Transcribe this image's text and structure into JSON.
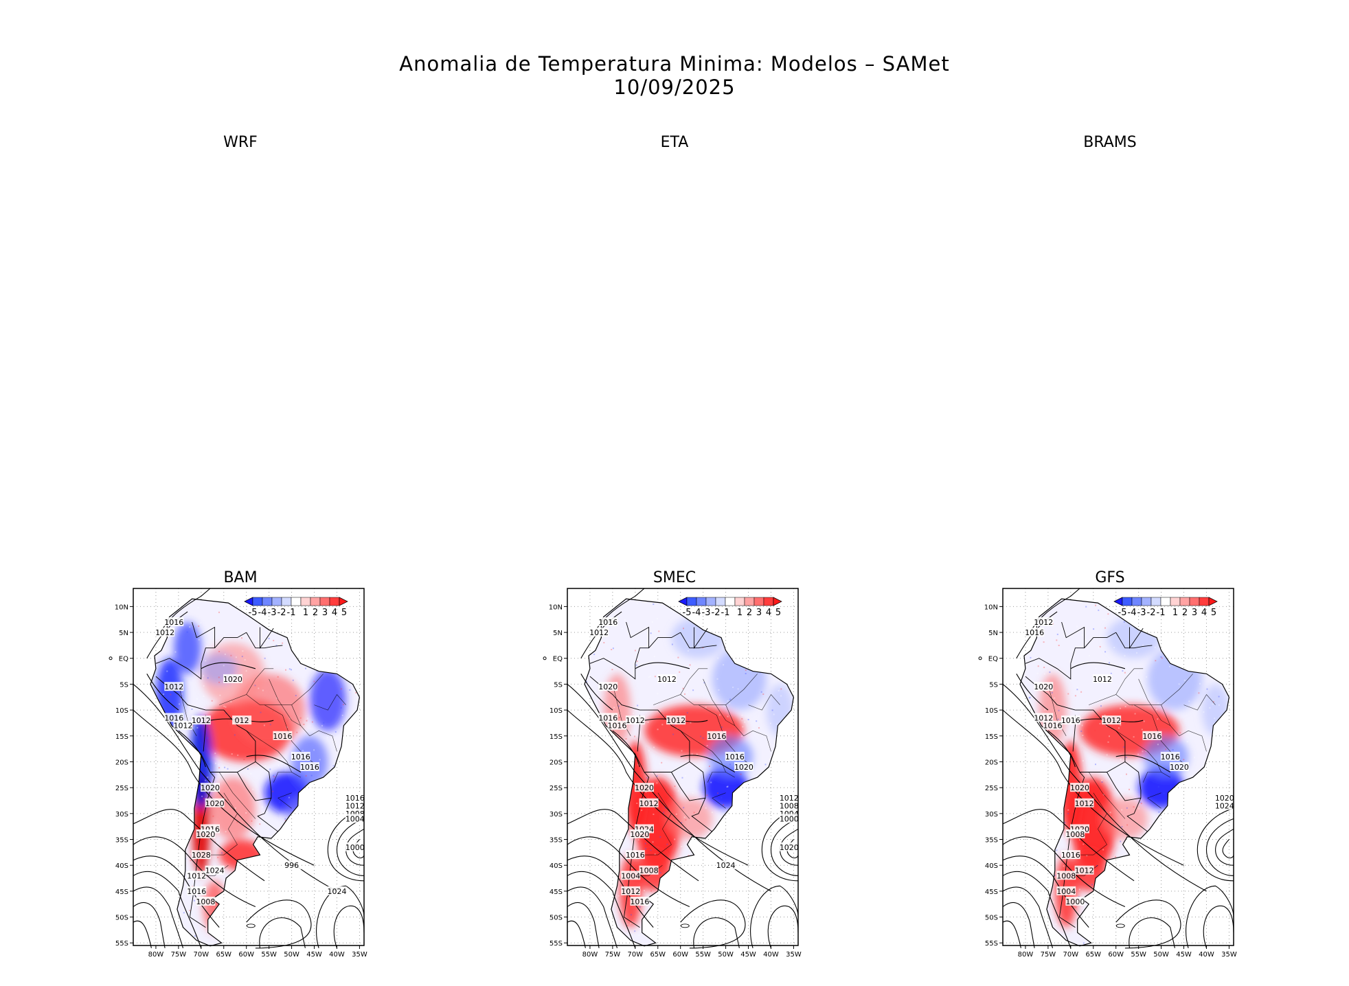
{
  "figure": {
    "title_line1": "Anomalia de Temperatura Minima: Modelos – SAMet",
    "title_line2": "10/09/2025"
  },
  "empty_panels": [
    {
      "name": "WRF"
    },
    {
      "name": "ETA"
    },
    {
      "name": "BRAMS"
    }
  ],
  "map_panels": [
    {
      "name": "BAM",
      "isobar_labels": [
        "1016",
        "1012",
        "1012",
        "1012",
        "012",
        "1020",
        "1016",
        "1012",
        "1016",
        "1016",
        "1016",
        "1020",
        "1020",
        "1016",
        "1020",
        "1028",
        "1024",
        "1012",
        "1016",
        "1008",
        "1016",
        "1012",
        "1008",
        "1004",
        "1000",
        "996",
        "1024"
      ],
      "anomaly_pattern": "warm-center-cold-east"
    },
    {
      "name": "SMEC",
      "isobar_labels": [
        "1016",
        "1012",
        "1020",
        "1012",
        "1012",
        "1012",
        "1016",
        "1016",
        "1016",
        "1016",
        "1020",
        "1020",
        "1012",
        "1024",
        "1020",
        "1016",
        "1008",
        "1004",
        "1012",
        "1016",
        "1012",
        "1008",
        "1004",
        "1000",
        "1020",
        "1024"
      ],
      "anomaly_pattern": "warm-south-cold-southeast"
    },
    {
      "name": "GFS",
      "isobar_labels": [
        "1012",
        "1016",
        "1020",
        "1016",
        "1012",
        "1012",
        "1012",
        "1016",
        "1016",
        "1016",
        "1020",
        "1020",
        "1012",
        "1020",
        "1008",
        "1016",
        "1012",
        "1008",
        "1004",
        "1000",
        "1020",
        "1024"
      ],
      "anomaly_pattern": "warm-south-cold-southeast"
    }
  ],
  "axes": {
    "lat_ticks": [
      "10N",
      "5N",
      "EQ",
      "5S",
      "10S",
      "15S",
      "20S",
      "25S",
      "30S",
      "35S",
      "40S",
      "45S",
      "50S",
      "55S"
    ],
    "lon_ticks": [
      "80W",
      "75W",
      "70W",
      "65W",
      "60W",
      "55W",
      "50W",
      "45W",
      "40W",
      "35W"
    ]
  },
  "colorbar": {
    "labels": [
      "-5",
      "-4",
      "-3",
      "-2",
      "-1",
      "1",
      "2",
      "3",
      "4",
      "5"
    ],
    "colors": [
      "#1a1aff",
      "#3d5cff",
      "#6f86ff",
      "#a3b2ff",
      "#d3dbff",
      "#ffffff",
      "#ffd3d3",
      "#ffa3a3",
      "#ff6f6f",
      "#ff3d3d",
      "#ff1a1a"
    ]
  }
}
